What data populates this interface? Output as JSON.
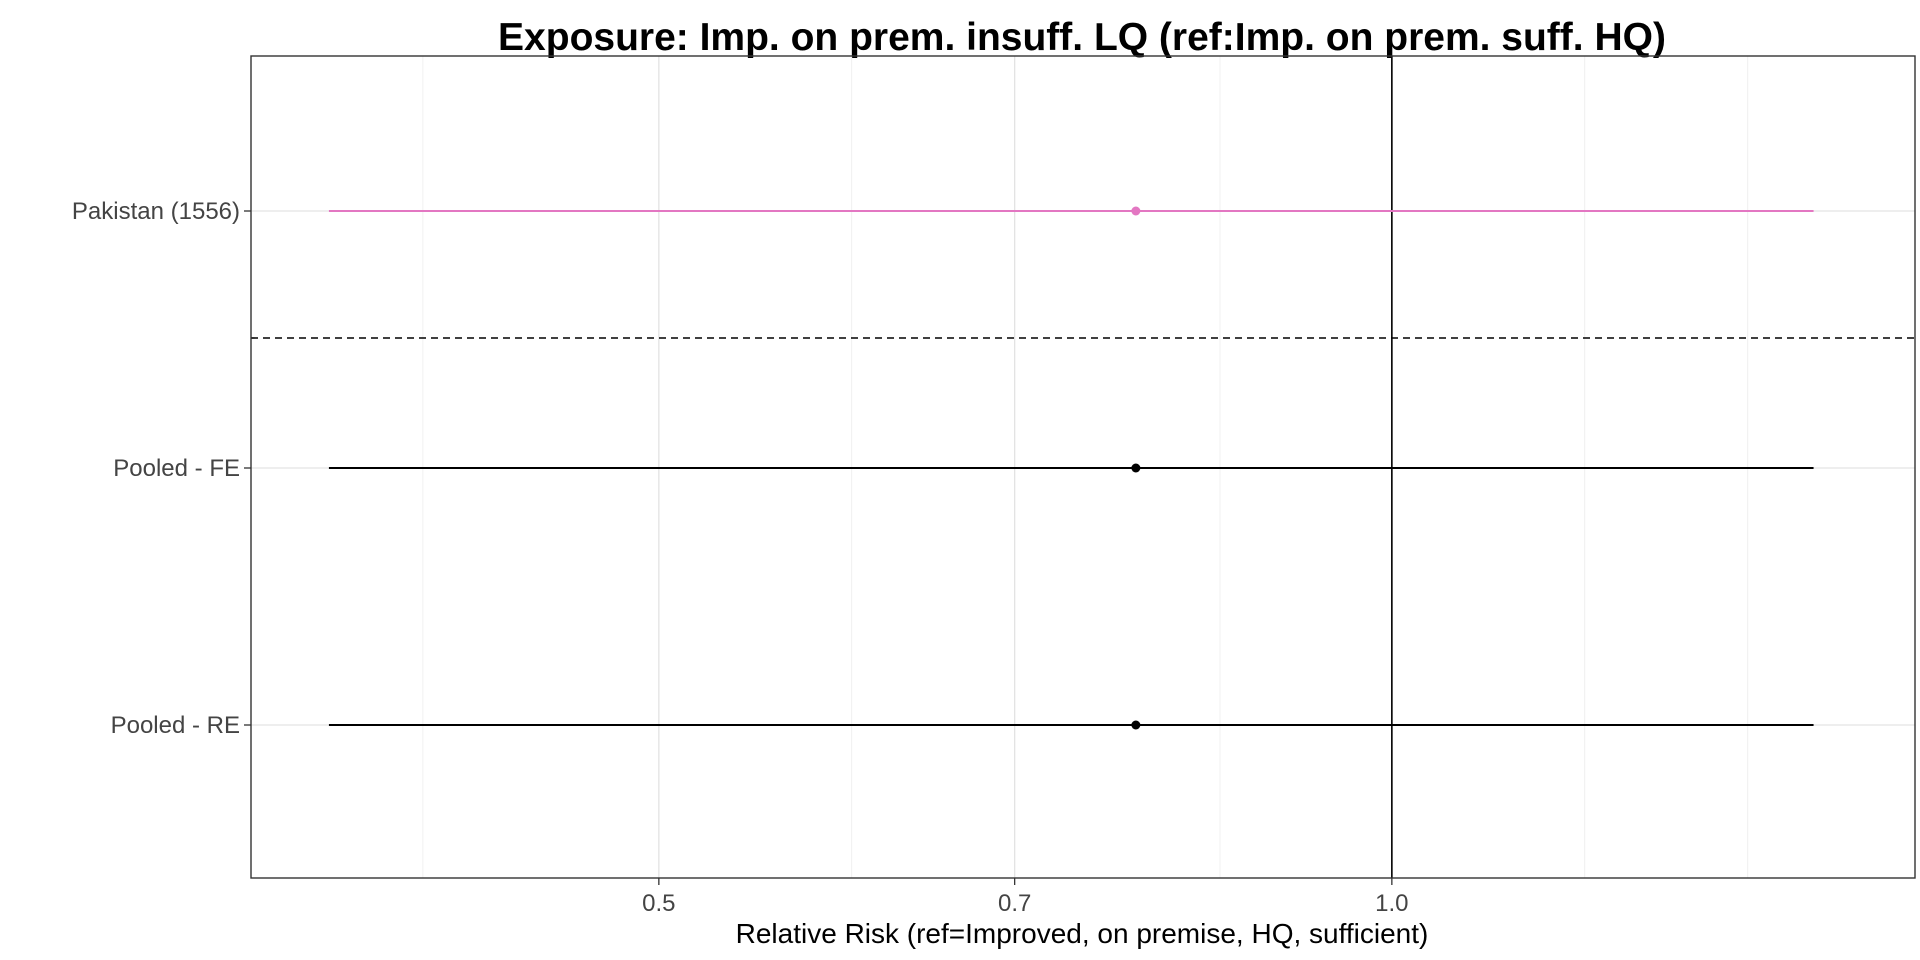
{
  "chart_data": {
    "type": "forest",
    "title": "Exposure: Imp. on prem. insuff. LQ (ref:Imp. on prem. suff. HQ)",
    "xlabel": "Relative Risk (ref=Improved, on premise, HQ, sufficient)",
    "ylabel": "",
    "x_scale": "log",
    "xlim": [
      0.34,
      1.64
    ],
    "x_ticks": [
      {
        "value": 0.5,
        "label": "0.5"
      },
      {
        "value": 0.7,
        "label": "0.7"
      },
      {
        "value": 1.0,
        "label": "1.0"
      }
    ],
    "x_minor_ticks": [
      0.4,
      0.6,
      0.85,
      1.2,
      1.4
    ],
    "reference_line": 1.0,
    "rows": [
      {
        "label": "Pakistan (1556)",
        "estimate": 0.785,
        "lower": 0.366,
        "upper": 1.49,
        "color": "#e377c2"
      },
      {
        "label": "Pooled - FE ",
        "estimate": 0.785,
        "lower": 0.366,
        "upper": 1.49,
        "color": "#000000"
      },
      {
        "label": "Pooled - RE ",
        "estimate": 0.785,
        "lower": 0.366,
        "upper": 1.49,
        "color": "#000000"
      }
    ],
    "separator_after_row": 0,
    "grid": true
  }
}
